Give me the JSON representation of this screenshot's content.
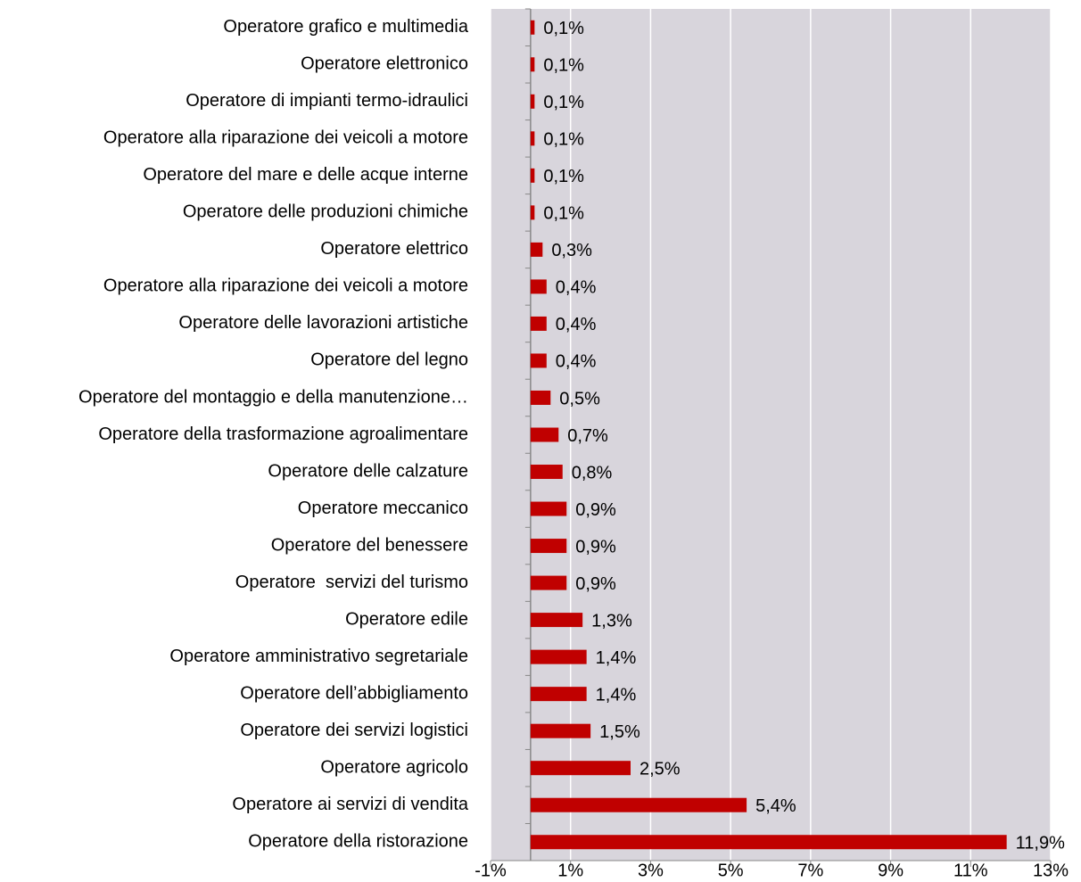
{
  "chart_data": {
    "type": "hbar",
    "categories": [
      "Operatore grafico e multimedia",
      "Operatore elettronico",
      "Operatore di impianti termo-idraulici",
      "Operatore alla riparazione dei veicoli a motore",
      "Operatore del mare e delle acque interne",
      "Operatore delle produzioni chimiche",
      "Operatore elettrico",
      "Operatore alla riparazione dei veicoli a motore",
      "Operatore delle lavorazioni artistiche",
      "Operatore del legno",
      "Operatore del montaggio e della manutenzione…",
      "Operatore della trasformazione agroalimentare",
      "Operatore delle calzature",
      "Operatore meccanico",
      "Operatore del benessere",
      "Operatore  servizi del turismo",
      "Operatore edile",
      "Operatore amministrativo segretariale",
      "Operatore dell’abbigliamento",
      "Operatore dei servizi logistici",
      "Operatore agricolo",
      "Operatore ai servizi di vendita",
      "Operatore della ristorazione"
    ],
    "values": [
      0.1,
      0.1,
      0.1,
      0.1,
      0.1,
      0.1,
      0.3,
      0.4,
      0.4,
      0.4,
      0.5,
      0.7,
      0.8,
      0.9,
      0.9,
      0.9,
      1.3,
      1.4,
      1.4,
      1.5,
      2.5,
      5.4,
      11.9
    ],
    "value_labels": [
      "0,1%",
      "0,1%",
      "0,1%",
      "0,1%",
      "0,1%",
      "0,1%",
      "0,3%",
      "0,4%",
      "0,4%",
      "0,4%",
      "0,5%",
      "0,7%",
      "0,8%",
      "0,9%",
      "0,9%",
      "0,9%",
      "1,3%",
      "1,4%",
      "1,4%",
      "1,5%",
      "2,5%",
      "5,4%",
      "11,9%"
    ],
    "color": "#c00000",
    "xlim": [
      -1,
      13
    ],
    "xticks": [
      {
        "value": -1,
        "label": "-1%"
      },
      {
        "value": 1,
        "label": "1%"
      },
      {
        "value": 3,
        "label": "3%"
      },
      {
        "value": 5,
        "label": "5%"
      },
      {
        "value": 7,
        "label": "7%"
      },
      {
        "value": 9,
        "label": "9%"
      },
      {
        "value": 11,
        "label": "11%"
      },
      {
        "value": 13,
        "label": "13%"
      }
    ],
    "grid": true
  }
}
